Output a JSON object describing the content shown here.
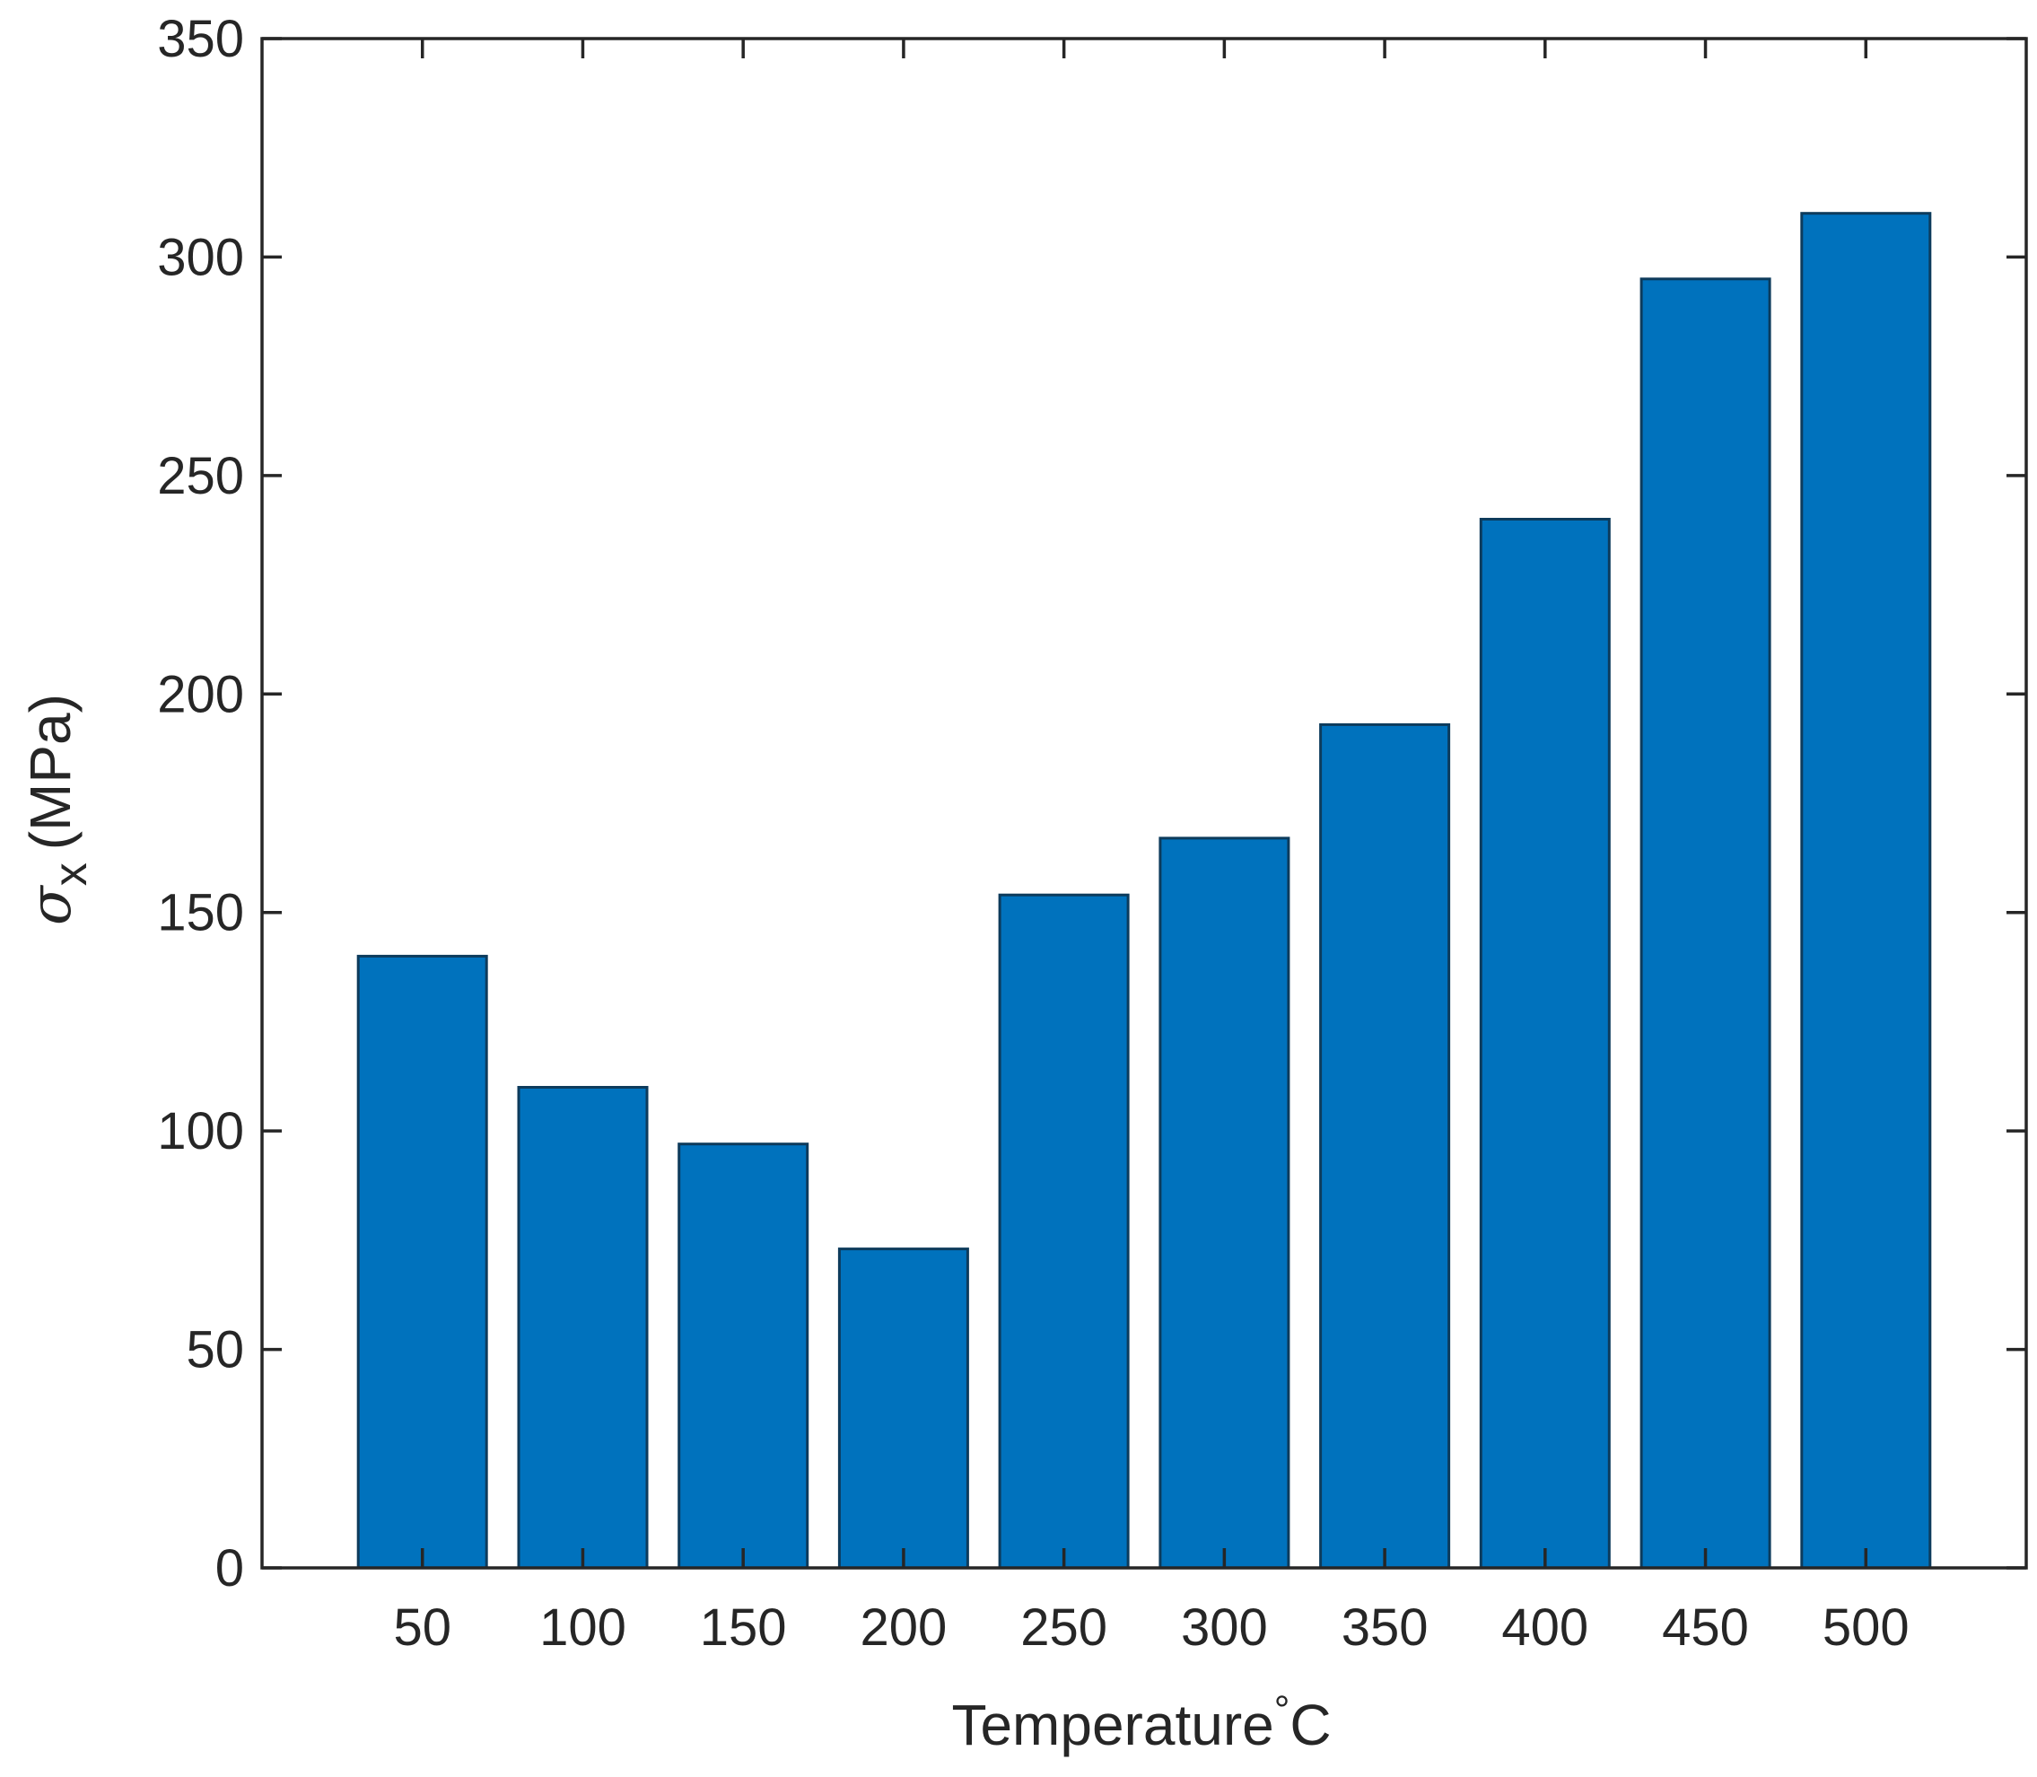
{
  "chart_data": {
    "type": "bar",
    "categories": [
      "50",
      "100",
      "150",
      "200",
      "250",
      "300",
      "350",
      "400",
      "450",
      "500"
    ],
    "values": [
      140,
      110,
      97,
      73,
      154,
      167,
      193,
      240,
      295,
      310
    ],
    "xlabel": {
      "main": "Temperature",
      "degree": "°",
      "unit": "C"
    },
    "ylabel": {
      "symbol": "σ",
      "subscript": "x",
      "unit": "(MPa)"
    },
    "ylim": [
      0,
      350
    ],
    "yticks": [
      "0",
      "50",
      "100",
      "150",
      "200",
      "250",
      "300",
      "350"
    ],
    "xlim": [
      0,
      11
    ],
    "grid": false,
    "box": true,
    "colors": {
      "bar_fill": "#0072BD",
      "bar_edge": "#0d3b5c",
      "axis": "#262626",
      "background": "#ffffff"
    }
  }
}
